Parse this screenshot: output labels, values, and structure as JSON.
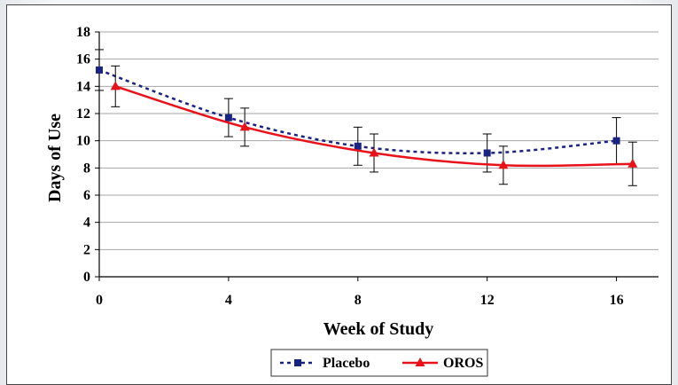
{
  "chart_data": {
    "type": "line",
    "title": "",
    "xlabel": "Week of Study",
    "ylabel": "Days of Use",
    "xlim": [
      0,
      17.3
    ],
    "ylim": [
      0,
      18
    ],
    "xticks": [
      0,
      4,
      8,
      12,
      16
    ],
    "yticks": [
      0,
      2,
      4,
      6,
      8,
      10,
      12,
      14,
      16,
      18
    ],
    "grid": "horizontal",
    "legend": "bottom-center",
    "series": [
      {
        "name": "Placebo",
        "color": "#1a237e",
        "line": "dotted",
        "marker": "square",
        "x": [
          0,
          4,
          8,
          12,
          16
        ],
        "values": [
          15.2,
          11.7,
          9.6,
          9.1,
          10.0
        ],
        "error": [
          1.5,
          1.4,
          1.4,
          1.4,
          1.7
        ]
      },
      {
        "name": "OROS",
        "color": "#e8121b",
        "line": "solid",
        "marker": "triangle",
        "x": [
          0.5,
          4.5,
          8.5,
          12.5,
          16.5
        ],
        "values": [
          14.0,
          11.0,
          9.1,
          8.2,
          8.3
        ],
        "error": [
          1.5,
          1.4,
          1.4,
          1.4,
          1.6
        ]
      }
    ]
  }
}
